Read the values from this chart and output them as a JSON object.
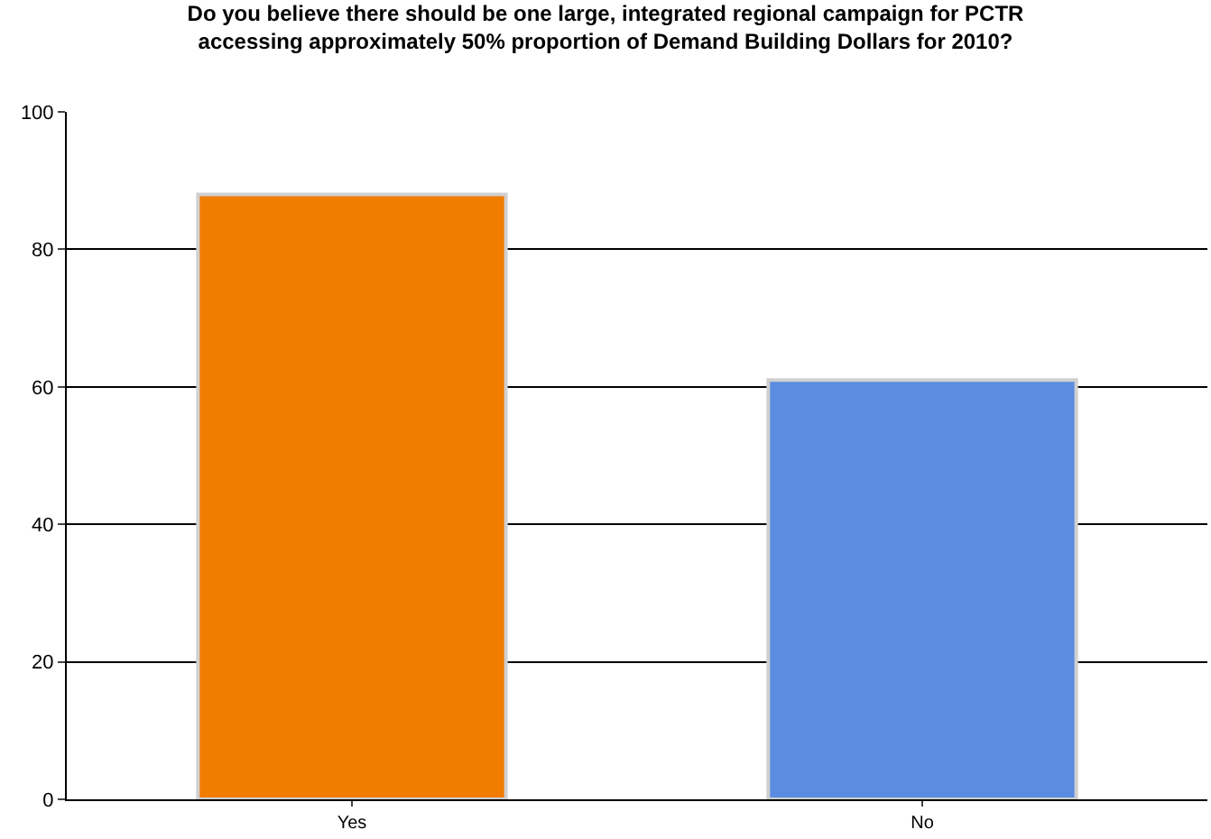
{
  "chart_data": {
    "type": "bar",
    "title": "Do you believe there should be one large, integrated regional campaign for PCTR accessing approximately 50% proportion of Demand Building Dollars for 2010?",
    "categories": [
      "Yes",
      "No"
    ],
    "values": [
      88,
      61
    ],
    "colors": [
      "#f07c00",
      "#5a8ce0"
    ],
    "ylim": [
      0,
      100
    ],
    "yticks": [
      0,
      20,
      40,
      60,
      80,
      100
    ],
    "grid": "y"
  }
}
